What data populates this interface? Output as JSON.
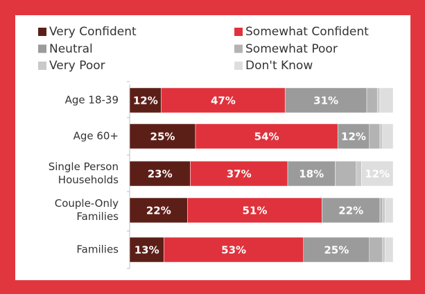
{
  "chart_data": {
    "type": "stacked-bar-horizontal",
    "categories": [
      "Age 18-39",
      "Age 60+",
      "Single Person Households",
      "Couple-Only Families",
      "Families"
    ],
    "xlim": [
      0,
      100
    ],
    "series": [
      {
        "name": "Very Confident",
        "color": "#5c1f18",
        "values": [
          12,
          25,
          23,
          22,
          13
        ],
        "value_labels": [
          "12%",
          "25%",
          "23%",
          "22%",
          "13%"
        ]
      },
      {
        "name": "Somewhat Confident",
        "color": "#e0323c",
        "values": [
          47,
          54,
          37,
          51,
          53
        ],
        "value_labels": [
          "47%",
          "54%",
          "37%",
          "51%",
          "53%"
        ]
      },
      {
        "name": "Neutral",
        "color": "#9b9b9b",
        "values": [
          31,
          12,
          18,
          22,
          25
        ],
        "value_labels": [
          "31%",
          "12%",
          "18%",
          "22%",
          "25%"
        ]
      },
      {
        "name": "Somewhat Poor",
        "color": "#b3b3b3",
        "values": [
          4,
          4,
          8,
          1,
          5
        ],
        "value_labels": [
          null,
          null,
          null,
          null,
          null
        ]
      },
      {
        "name": "Very Poor",
        "color": "#c9c9c9",
        "values": [
          1,
          1,
          2,
          1,
          1
        ],
        "value_labels": [
          null,
          null,
          null,
          null,
          null
        ]
      },
      {
        "name": "Don't Know",
        "color": "#dedede",
        "values": [
          5,
          4,
          12,
          3,
          3
        ],
        "value_labels": [
          null,
          null,
          "12%",
          null,
          null
        ]
      }
    ]
  }
}
